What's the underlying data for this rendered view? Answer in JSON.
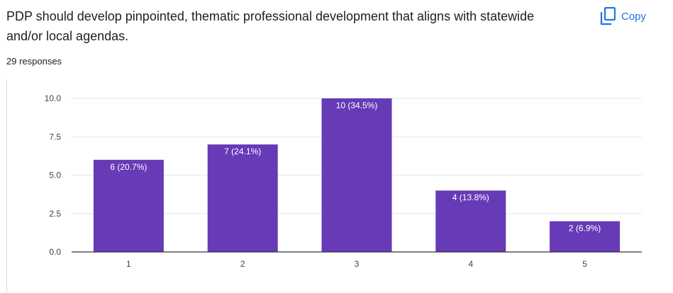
{
  "question": {
    "title": "PDP should develop pinpointed, thematic professional development that aligns with statewide and/or local agendas.",
    "responses": "29 responses"
  },
  "copy_button": {
    "label": "Copy",
    "icon": "copy-icon"
  },
  "colors": {
    "bar": "#673ab7",
    "accent": "#1a73e8",
    "grid": "#e6e6e6",
    "axis": "#333333"
  },
  "chart_data": {
    "type": "bar",
    "title": "",
    "xlabel": "",
    "ylabel": "",
    "categories": [
      "1",
      "2",
      "3",
      "4",
      "5"
    ],
    "values": [
      6,
      7,
      10,
      4,
      2
    ],
    "data_labels": [
      "6 (20.7%)",
      "7 (24.1%)",
      "10 (34.5%)",
      "4 (13.8%)",
      "2 (6.9%)"
    ],
    "y_ticks": [
      "0.0",
      "2.5",
      "5.0",
      "7.5",
      "10.0"
    ],
    "ylim": [
      0,
      10
    ],
    "grid": true,
    "legend": "none"
  }
}
